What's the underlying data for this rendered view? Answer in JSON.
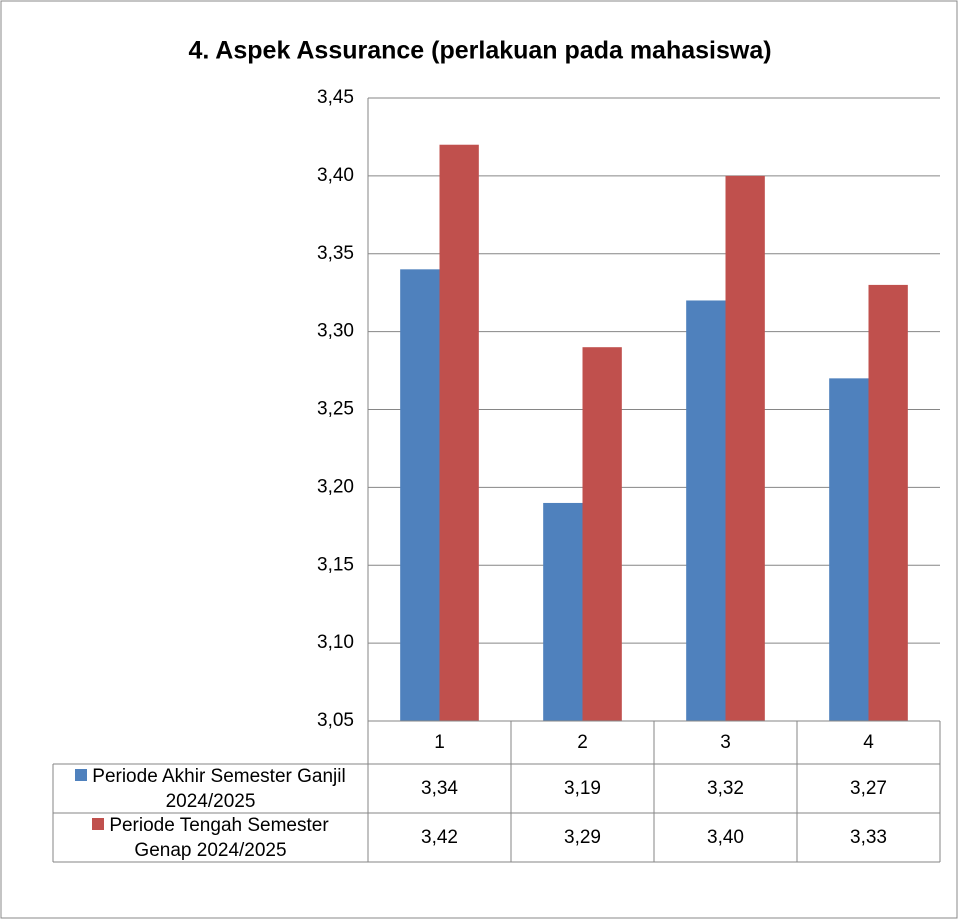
{
  "chart_data": {
    "type": "bar",
    "title": "4. Aspek Assurance (perlakuan pada mahasiswa)",
    "categories": [
      "1",
      "2",
      "3",
      "4"
    ],
    "series": [
      {
        "name": "Periode Akhir Semester Ganjil 2024/2025",
        "color": "#4f81bd",
        "values": [
          3.34,
          3.19,
          3.32,
          3.27
        ],
        "value_labels": [
          "3,34",
          "3,19",
          "3,32",
          "3,27"
        ]
      },
      {
        "name": "Periode Tengah Semester Genap 2024/2025",
        "color": "#c0504d",
        "values": [
          3.42,
          3.29,
          3.4,
          3.33
        ],
        "value_labels": [
          "3,42",
          "3,29",
          "3,40",
          "3,33"
        ]
      }
    ],
    "ylim": [
      3.05,
      3.45
    ],
    "yticks": [
      {
        "value": 3.05,
        "label": "3,05"
      },
      {
        "value": 3.1,
        "label": "3,10"
      },
      {
        "value": 3.15,
        "label": "3,15"
      },
      {
        "value": 3.2,
        "label": "3,20"
      },
      {
        "value": 3.25,
        "label": "3,25"
      },
      {
        "value": 3.3,
        "label": "3,30"
      },
      {
        "value": 3.35,
        "label": "3,35"
      },
      {
        "value": 3.4,
        "label": "3,40"
      },
      {
        "value": 3.45,
        "label": "3,45"
      }
    ],
    "grid": true
  }
}
